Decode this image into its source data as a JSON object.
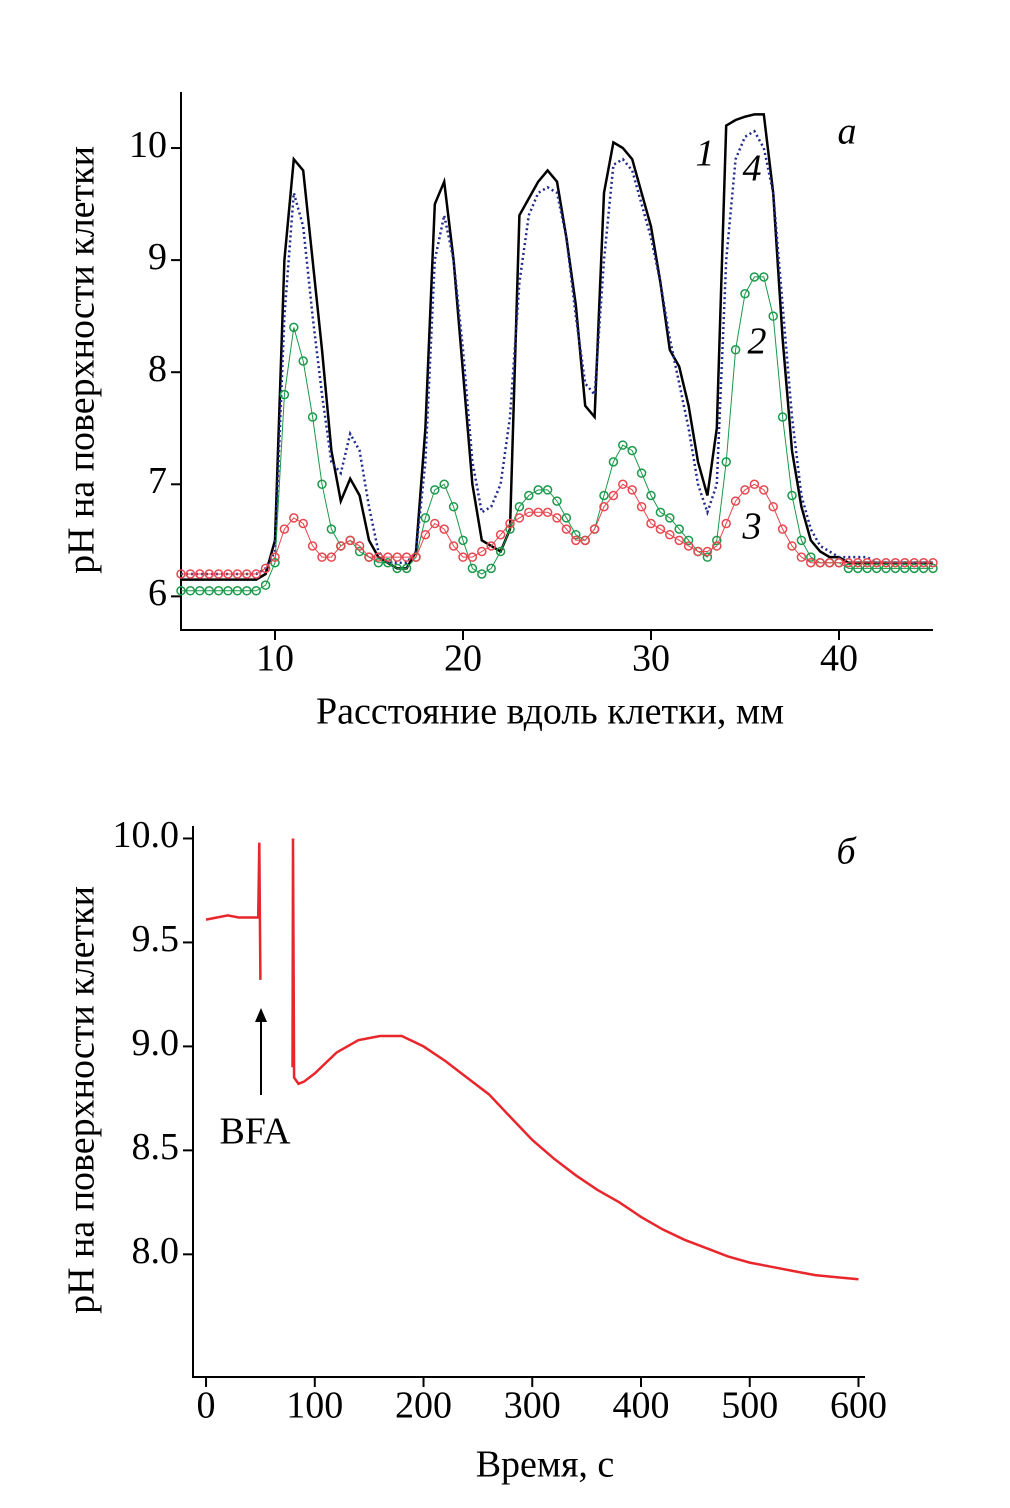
{
  "chart_data": [
    {
      "type": "line",
      "panel_label": "а",
      "x_label": "Расстояние вдоль клетки, мм",
      "y_label": "pH на поверхности клетки",
      "xlim": [
        5,
        45
      ],
      "ylim": [
        5.7,
        10.5
      ],
      "xticks": [
        10,
        20,
        30,
        40
      ],
      "yticks": [
        6,
        7,
        8,
        9,
        10
      ],
      "x": [
        5,
        5.5,
        6,
        6.5,
        7,
        7.5,
        8,
        8.5,
        9,
        9.5,
        10,
        10.5,
        11,
        11.5,
        12,
        12.5,
        13,
        13.5,
        14,
        14.5,
        15,
        15.5,
        16,
        16.5,
        17,
        17.5,
        18,
        18.5,
        19,
        19.5,
        20,
        20.5,
        21,
        21.5,
        22,
        22.5,
        23,
        23.5,
        24,
        24.5,
        25,
        25.5,
        26,
        26.5,
        27,
        27.5,
        28,
        28.5,
        29,
        29.5,
        30,
        30.5,
        31,
        31.5,
        32,
        32.5,
        33,
        33.5,
        34,
        34.5,
        35,
        35.5,
        36,
        36.5,
        37,
        37.5,
        38,
        38.5,
        39,
        39.5,
        40,
        40.5,
        41,
        41.5,
        42,
        42.5,
        43,
        43.5,
        44,
        44.5,
        45
      ],
      "series": [
        {
          "name": "1",
          "color": "#000000",
          "line_style": "solid",
          "values": [
            6.15,
            6.15,
            6.15,
            6.15,
            6.15,
            6.15,
            6.15,
            6.15,
            6.15,
            6.2,
            6.5,
            9.0,
            9.9,
            9.8,
            9.0,
            8.2,
            7.3,
            6.85,
            7.05,
            6.9,
            6.5,
            6.35,
            6.3,
            6.25,
            6.25,
            6.4,
            7.5,
            9.5,
            9.7,
            9.0,
            8.0,
            7.0,
            6.5,
            6.45,
            6.4,
            6.6,
            9.4,
            9.55,
            9.7,
            9.8,
            9.7,
            9.2,
            8.6,
            7.7,
            7.6,
            9.6,
            10.05,
            10.0,
            9.9,
            9.6,
            9.3,
            8.8,
            8.2,
            8.05,
            7.7,
            7.2,
            6.9,
            7.5,
            10.2,
            10.25,
            10.28,
            10.3,
            10.3,
            9.6,
            8.3,
            7.3,
            6.8,
            6.5,
            6.4,
            6.35,
            6.35,
            6.3,
            6.3,
            6.3,
            6.3,
            6.3,
            6.3,
            6.3,
            6.3,
            6.3,
            6.3
          ]
        },
        {
          "name": "4",
          "color": "#1f2a8c",
          "line_style": "dotted",
          "values": [
            6.2,
            6.2,
            6.2,
            6.2,
            6.2,
            6.2,
            6.2,
            6.2,
            6.2,
            6.25,
            6.4,
            8.5,
            9.6,
            9.3,
            8.5,
            7.8,
            7.2,
            7.1,
            7.45,
            7.3,
            6.8,
            6.4,
            6.3,
            6.3,
            6.3,
            6.4,
            7.2,
            9.0,
            9.4,
            9.0,
            8.2,
            7.2,
            6.75,
            6.8,
            7.0,
            7.6,
            8.8,
            9.4,
            9.6,
            9.65,
            9.6,
            9.2,
            8.5,
            7.9,
            7.8,
            9.0,
            9.85,
            9.9,
            9.8,
            9.5,
            9.2,
            8.8,
            8.3,
            7.9,
            7.5,
            7.0,
            6.75,
            7.0,
            9.0,
            9.9,
            10.1,
            10.15,
            10.0,
            9.6,
            8.6,
            7.6,
            6.9,
            6.6,
            6.45,
            6.4,
            6.35,
            6.35,
            6.35,
            6.35,
            6.3,
            6.3,
            6.3,
            6.3,
            6.3,
            6.3,
            6.3
          ]
        },
        {
          "name": "2",
          "color": "#1a9a4a",
          "line_style": "markers",
          "values": [
            6.05,
            6.05,
            6.05,
            6.05,
            6.05,
            6.05,
            6.05,
            6.05,
            6.05,
            6.1,
            6.3,
            7.8,
            8.4,
            8.1,
            7.6,
            7.0,
            6.6,
            6.45,
            6.5,
            6.4,
            6.35,
            6.3,
            6.3,
            6.25,
            6.25,
            6.35,
            6.7,
            6.95,
            7.0,
            6.8,
            6.5,
            6.25,
            6.2,
            6.25,
            6.4,
            6.6,
            6.8,
            6.9,
            6.95,
            6.95,
            6.85,
            6.7,
            6.55,
            6.5,
            6.6,
            6.9,
            7.2,
            7.35,
            7.3,
            7.1,
            6.9,
            6.75,
            6.7,
            6.6,
            6.5,
            6.4,
            6.35,
            6.5,
            7.2,
            8.2,
            8.7,
            8.85,
            8.85,
            8.5,
            7.6,
            6.9,
            6.5,
            6.35,
            6.3,
            6.3,
            6.3,
            6.25,
            6.25,
            6.25,
            6.25,
            6.25,
            6.25,
            6.25,
            6.25,
            6.25,
            6.25
          ]
        },
        {
          "name": "3",
          "color": "#e8474f",
          "line_style": "markers",
          "values": [
            6.2,
            6.2,
            6.2,
            6.2,
            6.2,
            6.2,
            6.2,
            6.2,
            6.2,
            6.25,
            6.35,
            6.6,
            6.7,
            6.65,
            6.45,
            6.35,
            6.35,
            6.45,
            6.5,
            6.45,
            6.35,
            6.35,
            6.35,
            6.35,
            6.35,
            6.35,
            6.55,
            6.65,
            6.6,
            6.45,
            6.35,
            6.35,
            6.4,
            6.45,
            6.55,
            6.65,
            6.7,
            6.75,
            6.75,
            6.75,
            6.7,
            6.6,
            6.5,
            6.5,
            6.6,
            6.8,
            6.9,
            7.0,
            6.95,
            6.8,
            6.65,
            6.6,
            6.55,
            6.5,
            6.45,
            6.4,
            6.4,
            6.45,
            6.65,
            6.85,
            6.95,
            7.0,
            6.95,
            6.8,
            6.6,
            6.45,
            6.35,
            6.3,
            6.3,
            6.3,
            6.3,
            6.3,
            6.3,
            6.3,
            6.3,
            6.3,
            6.3,
            6.3,
            6.3,
            6.3,
            6.3
          ]
        }
      ]
    },
    {
      "type": "line",
      "panel_label": "б",
      "annotation": "BFA",
      "x_label": "Время, с",
      "y_label": "pH на поверхности клетки",
      "xlim": [
        -12,
        606
      ],
      "ylim": [
        7.41,
        10.06
      ],
      "xticks": [
        0,
        100,
        200,
        300,
        400,
        500,
        600
      ],
      "yticks": [
        {
          "value": 10,
          "label": "10.0"
        },
        9.5,
        {
          "value": 9,
          "label": "9.0"
        },
        8.5,
        {
          "value": 8,
          "label": "8.0"
        }
      ],
      "color": "#e8262b",
      "x": [
        0,
        10,
        20,
        30,
        40,
        48,
        49,
        50,
        65,
        79.5,
        80,
        81,
        85,
        90,
        100,
        120,
        140,
        160,
        180,
        200,
        220,
        240,
        260,
        280,
        300,
        320,
        340,
        360,
        380,
        400,
        420,
        440,
        460,
        480,
        500,
        520,
        540,
        560,
        580,
        600
      ],
      "values": [
        9.61,
        9.62,
        9.63,
        9.62,
        9.62,
        9.62,
        9.98,
        9.32,
        null,
        8.9,
        10.0,
        8.85,
        8.82,
        8.83,
        8.87,
        8.97,
        9.03,
        9.05,
        9.05,
        9.0,
        8.93,
        8.85,
        8.77,
        8.66,
        8.55,
        8.46,
        8.38,
        8.31,
        8.25,
        8.18,
        8.12,
        8.07,
        8.03,
        7.99,
        7.96,
        7.94,
        7.92,
        7.9,
        7.89,
        7.88
      ]
    }
  ]
}
